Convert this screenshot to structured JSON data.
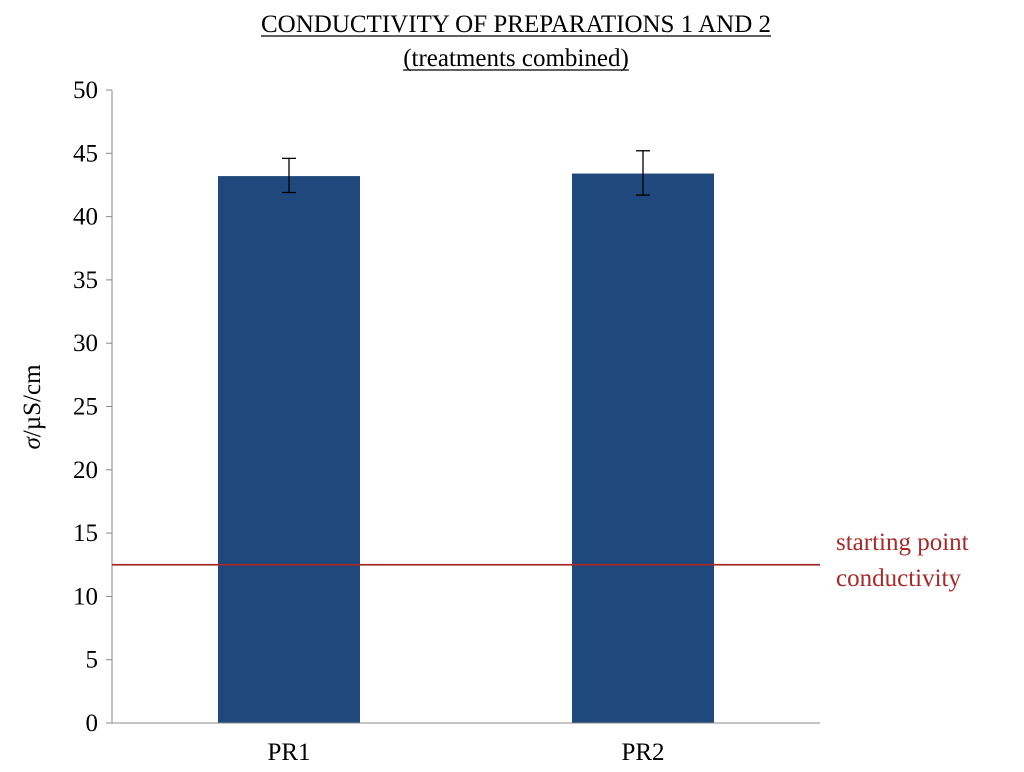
{
  "chart_data": {
    "type": "bar",
    "title": "CONDUCTIVITY OF PREPARATIONS 1 AND 2",
    "subtitle": "(treatments combined)",
    "xlabel": "",
    "ylabel_symbol": "σ",
    "ylabel_unit": "/µS/cm",
    "ylim": [
      0,
      50
    ],
    "ytick_step": 5,
    "yticks": [
      "0",
      "5",
      "10",
      "15",
      "20",
      "25",
      "30",
      "35",
      "40",
      "45",
      "50"
    ],
    "categories": [
      "PR1",
      "PR2"
    ],
    "values": [
      43.2,
      43.4
    ],
    "error_low": [
      41.9,
      41.7
    ],
    "error_high": [
      44.6,
      45.2
    ],
    "bar_color": "#1f497d",
    "reference_line": {
      "value": 12.5,
      "color": "#a52a2a",
      "label_line1": "starting point",
      "label_line2": "conductivity"
    },
    "grid": false,
    "legend": "none"
  }
}
